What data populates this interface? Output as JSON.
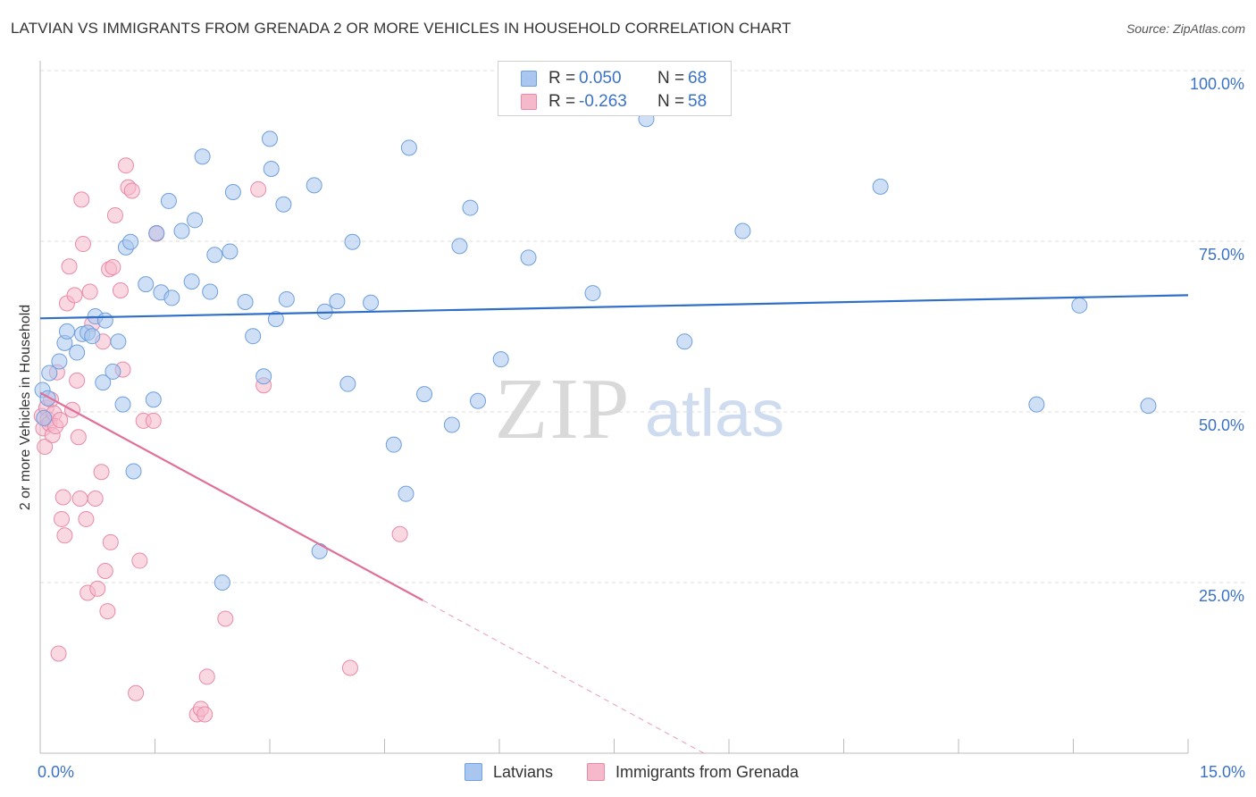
{
  "title": "LATVIAN VS IMMIGRANTS FROM GRENADA 2 OR MORE VEHICLES IN HOUSEHOLD CORRELATION CHART",
  "source": "Source: ZipAtlas.com",
  "watermark": {
    "zip": "ZIP",
    "atlas": "atlas"
  },
  "colors": {
    "blue_fill": "#a8c6ef",
    "blue_stroke": "#6f9fdc",
    "blue_line": "#2f6fc7",
    "pink_fill": "#f6b8cb",
    "pink_stroke": "#e88aa8",
    "pink_line": "#e0709a",
    "axis_text": "#3a72c8",
    "grid": "#dddddd"
  },
  "stats": [
    {
      "r_label": "R =",
      "r_value": "0.050",
      "n_label": "N =",
      "n_value": "68",
      "color": "#a8c6ef",
      "stroke": "#6f9fdc"
    },
    {
      "r_label": "R =",
      "r_value": "-0.263",
      "n_label": "N =",
      "n_value": "58",
      "color": "#f6b8cb",
      "stroke": "#e88aa8"
    }
  ],
  "legend": [
    {
      "label": "Latvians",
      "color": "#a8c6ef",
      "stroke": "#6f9fdc"
    },
    {
      "label": "Immigrants from Grenada",
      "color": "#f6b8cb",
      "stroke": "#e88aa8"
    }
  ],
  "chart_data": {
    "type": "scatter",
    "title": "LATVIAN VS IMMIGRANTS FROM GRENADA 2 OR MORE VEHICLES IN HOUSEHOLD CORRELATION CHART",
    "xlabel": "",
    "ylabel": "2 or more Vehicles in Household",
    "xlim": [
      0,
      15
    ],
    "ylim": [
      0,
      100
    ],
    "x_tick_labels": [
      {
        "value": 0,
        "label": "0.0%"
      },
      {
        "value": 15,
        "label": "15.0%"
      }
    ],
    "y_tick_labels": [
      {
        "value": 25,
        "label": "25.0%"
      },
      {
        "value": 50,
        "label": "50.0%"
      },
      {
        "value": 75,
        "label": "75.0%"
      },
      {
        "value": 100,
        "label": "100.0%"
      }
    ],
    "grid": true,
    "legend_position": "bottom",
    "series": [
      {
        "name": "Latvians",
        "color": "#a8c6ef",
        "trend": {
          "x": [
            0,
            15
          ],
          "y": [
            63.7,
            67.1
          ],
          "dashed_from": null
        },
        "points": [
          [
            0.03,
            53.2
          ],
          [
            0.12,
            55.7
          ],
          [
            0.25,
            57.4
          ],
          [
            0.32,
            60.1
          ],
          [
            0.35,
            61.8
          ],
          [
            0.48,
            58.7
          ],
          [
            0.55,
            61.4
          ],
          [
            0.62,
            61.6
          ],
          [
            0.68,
            61.1
          ],
          [
            0.72,
            64.0
          ],
          [
            0.82,
            54.3
          ],
          [
            0.85,
            63.4
          ],
          [
            0.95,
            55.9
          ],
          [
            1.02,
            60.3
          ],
          [
            1.08,
            51.1
          ],
          [
            1.12,
            74.1
          ],
          [
            1.18,
            74.9
          ],
          [
            1.22,
            41.3
          ],
          [
            1.38,
            68.7
          ],
          [
            1.48,
            51.8
          ],
          [
            1.52,
            76.2
          ],
          [
            1.58,
            67.5
          ],
          [
            1.68,
            80.9
          ],
          [
            1.72,
            66.7
          ],
          [
            1.85,
            76.5
          ],
          [
            1.98,
            69.1
          ],
          [
            2.02,
            78.1
          ],
          [
            2.12,
            87.4
          ],
          [
            2.22,
            67.6
          ],
          [
            2.28,
            73.0
          ],
          [
            2.38,
            25.0
          ],
          [
            2.48,
            73.5
          ],
          [
            2.52,
            82.2
          ],
          [
            2.68,
            66.1
          ],
          [
            2.78,
            61.1
          ],
          [
            2.92,
            55.2
          ],
          [
            3.0,
            90.0
          ],
          [
            3.02,
            85.6
          ],
          [
            3.08,
            63.6
          ],
          [
            3.18,
            80.4
          ],
          [
            3.22,
            66.5
          ],
          [
            3.58,
            83.2
          ],
          [
            3.65,
            29.6
          ],
          [
            3.72,
            64.7
          ],
          [
            3.88,
            66.2
          ],
          [
            4.02,
            54.1
          ],
          [
            4.08,
            74.9
          ],
          [
            4.32,
            66.0
          ],
          [
            4.62,
            45.2
          ],
          [
            4.78,
            38.0
          ],
          [
            4.82,
            88.7
          ],
          [
            5.02,
            52.6
          ],
          [
            5.38,
            48.1
          ],
          [
            5.48,
            74.3
          ],
          [
            5.62,
            79.9
          ],
          [
            5.72,
            51.6
          ],
          [
            6.02,
            57.7
          ],
          [
            6.38,
            72.6
          ],
          [
            7.22,
            67.4
          ],
          [
            7.92,
            92.9
          ],
          [
            8.42,
            60.3
          ],
          [
            9.18,
            76.5
          ],
          [
            10.98,
            83.0
          ],
          [
            13.02,
            51.1
          ],
          [
            13.58,
            65.6
          ],
          [
            14.48,
            50.9
          ],
          [
            0.05,
            49.1
          ],
          [
            0.1,
            52.0
          ]
        ]
      },
      {
        "name": "Immigrants from Grenada",
        "color": "#f6b8cb",
        "trend": {
          "x": [
            0,
            5
          ],
          "y": [
            52.8,
            22.4
          ],
          "dashed_to": [
            15,
            -38.6
          ]
        },
        "points": [
          [
            0.02,
            49.4
          ],
          [
            0.04,
            47.6
          ],
          [
            0.06,
            44.9
          ],
          [
            0.08,
            50.6
          ],
          [
            0.1,
            48.9
          ],
          [
            0.12,
            48.3
          ],
          [
            0.14,
            51.8
          ],
          [
            0.16,
            46.6
          ],
          [
            0.18,
            49.8
          ],
          [
            0.2,
            47.9
          ],
          [
            0.22,
            55.8
          ],
          [
            0.24,
            14.6
          ],
          [
            0.26,
            48.8
          ],
          [
            0.28,
            34.3
          ],
          [
            0.3,
            37.5
          ],
          [
            0.32,
            31.9
          ],
          [
            0.35,
            65.9
          ],
          [
            0.38,
            71.3
          ],
          [
            0.42,
            50.3
          ],
          [
            0.45,
            67.1
          ],
          [
            0.48,
            54.6
          ],
          [
            0.5,
            46.3
          ],
          [
            0.52,
            37.3
          ],
          [
            0.54,
            81.1
          ],
          [
            0.56,
            74.6
          ],
          [
            0.6,
            34.3
          ],
          [
            0.62,
            23.5
          ],
          [
            0.65,
            67.6
          ],
          [
            0.68,
            62.9
          ],
          [
            0.72,
            37.3
          ],
          [
            0.75,
            24.1
          ],
          [
            0.8,
            41.2
          ],
          [
            0.82,
            60.3
          ],
          [
            0.85,
            26.7
          ],
          [
            0.88,
            20.8
          ],
          [
            0.9,
            70.9
          ],
          [
            0.92,
            30.9
          ],
          [
            0.95,
            71.2
          ],
          [
            0.98,
            78.8
          ],
          [
            1.05,
            67.8
          ],
          [
            1.08,
            56.2
          ],
          [
            1.12,
            86.1
          ],
          [
            1.15,
            82.9
          ],
          [
            1.2,
            82.4
          ],
          [
            1.25,
            8.8
          ],
          [
            1.3,
            28.2
          ],
          [
            1.35,
            48.7
          ],
          [
            1.52,
            76.1
          ],
          [
            2.05,
            5.7
          ],
          [
            2.1,
            6.5
          ],
          [
            2.15,
            5.7
          ],
          [
            2.18,
            11.2
          ],
          [
            2.42,
            19.7
          ],
          [
            2.85,
            82.6
          ],
          [
            2.92,
            53.9
          ],
          [
            4.05,
            12.5
          ],
          [
            4.7,
            32.1
          ],
          [
            1.48,
            48.7
          ]
        ]
      }
    ]
  }
}
